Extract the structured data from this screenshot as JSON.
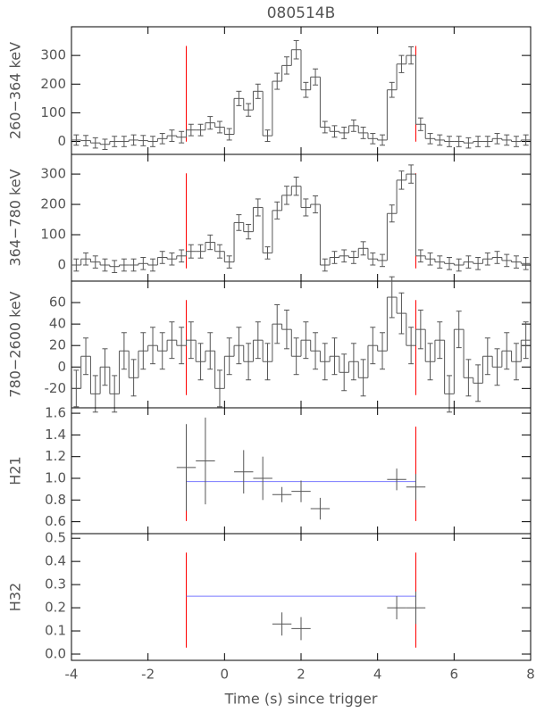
{
  "chart_data": [
    {
      "type": "histogram",
      "title": "080514B",
      "ylabel": "260−364 keV",
      "color": "#555555",
      "bins": [
        -4,
        -3.75,
        -3.5,
        -3.25,
        -3,
        -2.75,
        -2.5,
        -2.25,
        -2,
        -1.75,
        -1.5,
        -1.25,
        -1,
        -0.75,
        -0.5,
        -0.25,
        0,
        0.25,
        0.5,
        0.75,
        1,
        1.25,
        1.5,
        1.75,
        2,
        2.25,
        2.5,
        2.75,
        3,
        3.25,
        3.5,
        3.75,
        4,
        4.25,
        4.5,
        4.75,
        5,
        5.25,
        5.5,
        5.75,
        6,
        6.25,
        6.5,
        6.75,
        7,
        7.25,
        7.5,
        7.75,
        8
      ],
      "values": [
        5,
        3,
        -5,
        -10,
        0,
        0,
        5,
        3,
        0,
        10,
        20,
        15,
        40,
        40,
        65,
        50,
        25,
        150,
        110,
        175,
        20,
        210,
        265,
        320,
        180,
        225,
        50,
        35,
        30,
        55,
        30,
        10,
        5,
        180,
        270,
        300,
        60,
        10,
        5,
        0,
        0,
        -5,
        0,
        0,
        10,
        5,
        0,
        5
      ],
      "errors": [
        18,
        18,
        18,
        18,
        18,
        18,
        18,
        18,
        18,
        18,
        20,
        20,
        20,
        20,
        22,
        20,
        20,
        25,
        22,
        25,
        20,
        28,
        30,
        32,
        26,
        28,
        20,
        20,
        20,
        20,
        20,
        18,
        18,
        26,
        30,
        30,
        22,
        18,
        18,
        18,
        18,
        18,
        18,
        18,
        18,
        18,
        18,
        18
      ],
      "vlines": [
        -1,
        5
      ],
      "vline_color": "#ff0000",
      "xlim": [
        -4,
        8
      ],
      "xticks": [
        -4,
        -2,
        0,
        2,
        4,
        6,
        8
      ],
      "ylim": [
        -45,
        400
      ],
      "yticks": [
        0,
        100,
        200,
        300
      ]
    },
    {
      "type": "histogram",
      "ylabel": "364−780 keV",
      "color": "#555555",
      "bins": [
        -4,
        -3.75,
        -3.5,
        -3.25,
        -3,
        -2.75,
        -2.5,
        -2.25,
        -2,
        -1.75,
        -1.5,
        -1.25,
        -1,
        -0.75,
        -0.5,
        -0.25,
        0,
        0.25,
        0.5,
        0.75,
        1,
        1.25,
        1.5,
        1.75,
        2,
        2.25,
        2.5,
        2.75,
        3,
        3.25,
        3.5,
        3.75,
        4,
        4.25,
        4.5,
        4.75,
        5,
        5.25,
        5.5,
        5.75,
        6,
        6.25,
        6.5,
        6.75,
        7,
        7.25,
        7.5,
        7.75,
        8
      ],
      "values": [
        0,
        20,
        10,
        0,
        -5,
        0,
        0,
        5,
        0,
        25,
        20,
        30,
        45,
        45,
        75,
        45,
        10,
        140,
        110,
        190,
        40,
        180,
        230,
        260,
        190,
        200,
        0,
        25,
        30,
        25,
        55,
        20,
        15,
        170,
        280,
        300,
        30,
        20,
        10,
        5,
        0,
        10,
        5,
        20,
        25,
        15,
        10,
        5
      ],
      "errors": [
        20,
        20,
        20,
        20,
        20,
        20,
        20,
        20,
        20,
        20,
        20,
        20,
        22,
        22,
        24,
        22,
        20,
        26,
        24,
        28,
        20,
        28,
        30,
        30,
        28,
        28,
        20,
        20,
        20,
        20,
        22,
        20,
        20,
        28,
        30,
        30,
        20,
        20,
        20,
        20,
        20,
        20,
        20,
        20,
        20,
        20,
        20,
        20
      ],
      "vlines": [
        -1,
        5
      ],
      "vline_color": "#ff0000",
      "xlim": [
        -4,
        8
      ],
      "xticks": [
        -4,
        -2,
        0,
        2,
        4,
        6,
        8
      ],
      "ylim": [
        -53,
        365
      ],
      "yticks": [
        0,
        100,
        200,
        300
      ]
    },
    {
      "type": "histogram",
      "ylabel": "780−2600 keV",
      "color": "#555555",
      "bins": [
        -4,
        -3.75,
        -3.5,
        -3.25,
        -3,
        -2.75,
        -2.5,
        -2.25,
        -2,
        -1.75,
        -1.5,
        -1.25,
        -1,
        -0.75,
        -0.5,
        -0.25,
        0,
        0.25,
        0.5,
        0.75,
        1,
        1.25,
        1.5,
        1.75,
        2,
        2.25,
        2.5,
        2.75,
        3,
        3.25,
        3.5,
        3.75,
        4,
        4.25,
        4.5,
        4.75,
        5,
        5.25,
        5.5,
        5.75,
        6,
        6.25,
        6.5,
        6.75,
        7,
        7.25,
        7.5,
        7.75,
        8
      ],
      "values": [
        -20,
        10,
        -25,
        0,
        -25,
        15,
        -10,
        15,
        20,
        15,
        25,
        20,
        25,
        5,
        15,
        -20,
        10,
        20,
        5,
        25,
        5,
        40,
        35,
        10,
        25,
        15,
        5,
        10,
        -5,
        5,
        -10,
        20,
        15,
        65,
        50,
        20,
        35,
        5,
        25,
        -25,
        35,
        -10,
        -15,
        10,
        0,
        15,
        5,
        25
      ],
      "errors": [
        17,
        17,
        17,
        17,
        17,
        17,
        17,
        17,
        17,
        17,
        17,
        17,
        17,
        17,
        17,
        17,
        17,
        17,
        17,
        17,
        17,
        18,
        18,
        17,
        17,
        17,
        17,
        17,
        17,
        17,
        17,
        17,
        17,
        19,
        19,
        17,
        18,
        17,
        17,
        17,
        17,
        17,
        17,
        17,
        17,
        17,
        17,
        17
      ],
      "vlines": [
        -1,
        5
      ],
      "vline_color": "#ff0000",
      "xlim": [
        -4,
        8
      ],
      "xticks": [
        -4,
        -2,
        0,
        2,
        4,
        6,
        8
      ],
      "ylim": [
        -38,
        80
      ],
      "yticks": [
        -20,
        0,
        20,
        40,
        60
      ]
    },
    {
      "type": "scatter",
      "ylabel": "H21",
      "color": "#555555",
      "x": [
        -1,
        -0.5,
        0.5,
        1,
        1.5,
        2,
        2.5,
        4.5,
        5
      ],
      "xerr": [
        0.25,
        0.25,
        0.25,
        0.25,
        0.25,
        0.25,
        0.25,
        0.25,
        0.25
      ],
      "values": [
        1.1,
        1.16,
        1.06,
        1.0,
        0.85,
        0.88,
        0.72,
        0.99,
        0.92
      ],
      "errors": [
        0.4,
        0.4,
        0.2,
        0.2,
        0.07,
        0.1,
        0.1,
        0.1,
        0.12
      ],
      "hline": {
        "value": 0.97,
        "xmin": -1,
        "xmax": 5,
        "color": "#7777ff"
      },
      "vlines": [
        -1,
        5
      ],
      "vline_color": "#ff0000",
      "xlim": [
        -4,
        8
      ],
      "xticks": [
        -4,
        -2,
        0,
        2,
        4,
        6,
        8
      ],
      "ylim": [
        0.49,
        1.65
      ],
      "yticks": [
        0.6,
        0.8,
        {
          "value": 1,
          "label": "1.0"
        },
        1.2,
        1.4,
        1.6
      ]
    },
    {
      "type": "scatter",
      "ylabel": "H32",
      "xlabel": "Time (s) since trigger",
      "color": "#555555",
      "x": [
        1.5,
        2,
        4.5,
        5
      ],
      "xerr": [
        0.25,
        0.25,
        0.25,
        0.25
      ],
      "values": [
        0.13,
        0.11,
        0.2,
        0.2
      ],
      "errors": [
        0.05,
        0.05,
        0.05,
        0.07
      ],
      "hline": {
        "value": 0.25,
        "xmin": -1,
        "xmax": 5,
        "color": "#7777ff"
      },
      "vlines": [
        -1,
        5
      ],
      "vline_color": "#ff0000",
      "xlim": [
        -4,
        8
      ],
      "xticks": [
        -4,
        -2,
        0,
        2,
        4,
        6,
        8
      ],
      "ylim": [
        -0.027,
        0.52
      ],
      "yticks": [
        {
          "value": 0,
          "label": "0.0"
        },
        0.1,
        0.2,
        0.3,
        0.4,
        0.5
      ]
    }
  ]
}
